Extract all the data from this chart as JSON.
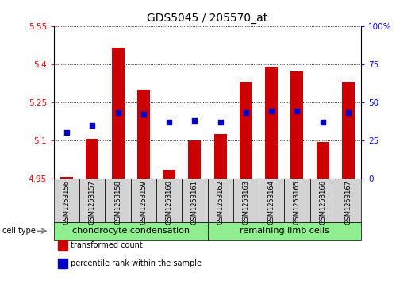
{
  "title": "GDS5045 / 205570_at",
  "samples": [
    "GSM1253156",
    "GSM1253157",
    "GSM1253158",
    "GSM1253159",
    "GSM1253160",
    "GSM1253161",
    "GSM1253162",
    "GSM1253163",
    "GSM1253164",
    "GSM1253165",
    "GSM1253166",
    "GSM1253167"
  ],
  "transformed_count": [
    4.955,
    5.105,
    5.465,
    5.3,
    4.985,
    5.1,
    5.125,
    5.33,
    5.39,
    5.37,
    5.095,
    5.33
  ],
  "percentile_rank": [
    30,
    35,
    43,
    42,
    37,
    38,
    37,
    43,
    44,
    44,
    37,
    43
  ],
  "ylim_left": [
    4.95,
    5.55
  ],
  "ylim_right": [
    0,
    100
  ],
  "yticks_left": [
    4.95,
    5.1,
    5.25,
    5.4,
    5.55
  ],
  "yticks_right": [
    0,
    25,
    50,
    75,
    100
  ],
  "bar_color": "#cc0000",
  "dot_color": "#0000cc",
  "bar_bottom": 4.95,
  "group1_label": "chondrocyte condensation",
  "group2_label": "remaining limb cells",
  "group1_samples": 6,
  "group2_samples": 6,
  "group_color": "#90ee90",
  "sample_bg_color": "#d3d3d3",
  "cell_type_label": "cell type",
  "legend_items": [
    {
      "label": "transformed count",
      "color": "#cc0000"
    },
    {
      "label": "percentile rank within the sample",
      "color": "#0000cc"
    }
  ],
  "plot_bg_color": "#ffffff",
  "title_fontsize": 10,
  "tick_fontsize": 7.5,
  "sample_fontsize": 6,
  "group_fontsize": 8,
  "legend_fontsize": 7,
  "cell_type_fontsize": 7
}
